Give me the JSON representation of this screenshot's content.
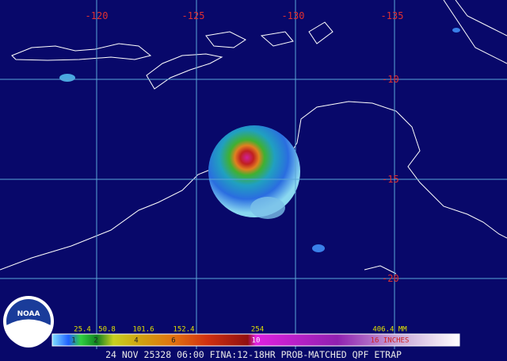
{
  "map": {
    "longitude_labels": [
      "-120",
      "-125",
      "-130",
      "-135"
    ],
    "latitude_labels": [
      "-10",
      "-15",
      "-20"
    ],
    "legend": {
      "mm_labels": [
        "25.4",
        "50.8",
        "101.6",
        "152.4",
        "254",
        "406.4 MM"
      ],
      "inch_labels": [
        "1",
        "2",
        "4",
        "6",
        "10",
        "16 INCHES"
      ]
    },
    "caption": "24 NOV 25328 06:00 FINA:12-18HR PROB-MATCHED QPF ETRAP",
    "logo": "NOAA"
  }
}
